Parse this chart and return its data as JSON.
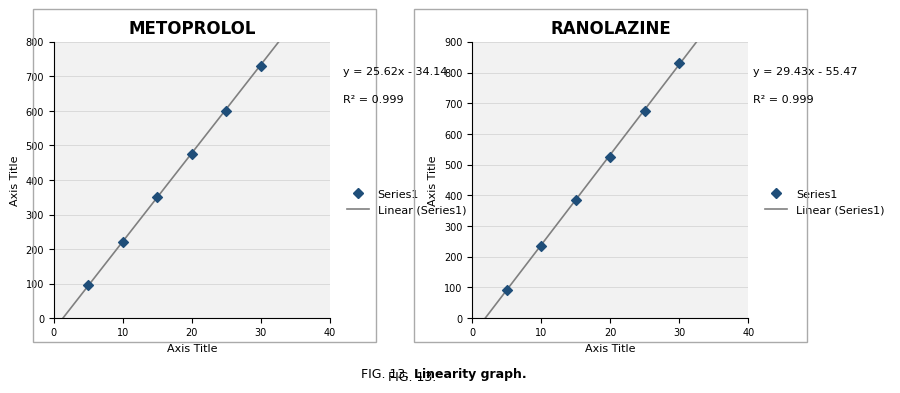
{
  "fig_width": 8.37,
  "fig_height": 4.06,
  "background_color": "#ffffff",
  "plots": [
    {
      "title": "METOPROLOL",
      "equation": "y = 25.62x - 34.14",
      "r_squared": "R² = 0.999",
      "x_data": [
        5,
        10,
        15,
        20,
        25,
        30
      ],
      "y_data": [
        95,
        220,
        350,
        475,
        600,
        730
      ],
      "xlim": [
        0,
        40
      ],
      "ylim": [
        0,
        800
      ],
      "xticks": [
        0,
        10,
        20,
        30,
        40
      ],
      "yticks": [
        0,
        100,
        200,
        300,
        400,
        500,
        600,
        700,
        800
      ],
      "xlabel": "Axis Title",
      "ylabel": "Axis Title",
      "slope": 25.62,
      "intercept": -34.14
    },
    {
      "title": "RANOLAZINE",
      "equation": "y = 29.43x - 55.47",
      "r_squared": "R² = 0.999",
      "x_data": [
        5,
        10,
        15,
        20,
        25,
        30
      ],
      "y_data": [
        92,
        235,
        385,
        525,
        675,
        830
      ],
      "xlim": [
        0,
        40
      ],
      "ylim": [
        0,
        900
      ],
      "xticks": [
        0,
        10,
        20,
        30,
        40
      ],
      "yticks": [
        0,
        100,
        200,
        300,
        400,
        500,
        600,
        700,
        800,
        900
      ],
      "xlabel": "Axis Title",
      "ylabel": "Axis Title",
      "slope": 29.43,
      "intercept": -55.47
    }
  ],
  "marker_color": "#1F4E79",
  "marker_style": "D",
  "marker_size": 5,
  "line_color": "#808080",
  "line_width": 1.2,
  "grid_color": "#d0d0d0",
  "fig_caption": "FIG. 13.",
  "fig_caption_bold": "Linearity graph.",
  "panel_bg": "#f2f2f2",
  "legend_marker_color": "#1F4E79",
  "title_fontsize": 12,
  "axis_label_fontsize": 8,
  "tick_fontsize": 7,
  "equation_fontsize": 8,
  "legend_fontsize": 8
}
